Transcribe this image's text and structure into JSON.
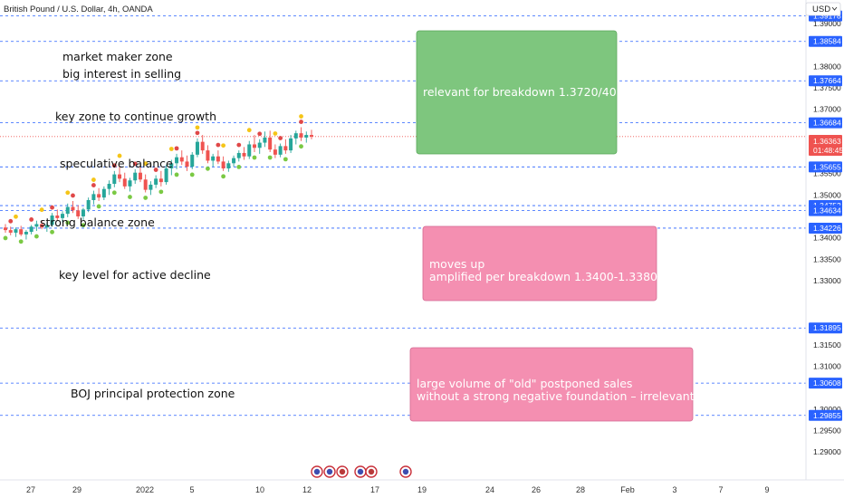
{
  "header": {
    "symbol_title": "British Pound / U.S. Dollar, 4h, OANDA",
    "currency": "USD"
  },
  "chart_data": {
    "type": "candlestick",
    "ylim": [
      1.2835,
      1.3955
    ],
    "y_ticks": [
      1.39,
      1.38,
      1.375,
      1.37,
      1.36,
      1.355,
      1.35,
      1.34,
      1.335,
      1.33,
      1.315,
      1.31,
      1.3,
      1.295,
      1.29
    ],
    "level_lines": [
      1.39178,
      1.38584,
      1.37664,
      1.36684,
      1.35655,
      1.34752,
      1.34634,
      1.34226,
      1.31895,
      1.30608,
      1.29855
    ],
    "current_price": 1.36363,
    "countdown": "01:48:45",
    "x_labels": [
      "27",
      "29",
      "2022",
      "5",
      "10",
      "12",
      "17",
      "19",
      "24",
      "26",
      "28",
      "Feb",
      "3",
      "7",
      "9"
    ],
    "candles": [
      [
        1.3424,
        1.3432,
        1.3412,
        1.3418
      ],
      [
        1.3418,
        1.3426,
        1.3406,
        1.3412
      ],
      [
        1.3412,
        1.3424,
        1.3402,
        1.342
      ],
      [
        1.342,
        1.3428,
        1.3404,
        1.3408
      ],
      [
        1.3408,
        1.3418,
        1.3396,
        1.3414
      ],
      [
        1.3414,
        1.343,
        1.3408,
        1.3426
      ],
      [
        1.3426,
        1.344,
        1.3416,
        1.3432
      ],
      [
        1.3432,
        1.344,
        1.342,
        1.3424
      ],
      [
        1.3424,
        1.3436,
        1.3414,
        1.343
      ],
      [
        1.343,
        1.3458,
        1.3426,
        1.3452
      ],
      [
        1.3452,
        1.3466,
        1.344,
        1.3446
      ],
      [
        1.3446,
        1.3462,
        1.3436,
        1.3456
      ],
      [
        1.3456,
        1.348,
        1.3448,
        1.3472
      ],
      [
        1.3472,
        1.3486,
        1.3458,
        1.3464
      ],
      [
        1.3464,
        1.3476,
        1.3444,
        1.345
      ],
      [
        1.345,
        1.347,
        1.3442,
        1.3466
      ],
      [
        1.3466,
        1.3494,
        1.346,
        1.3488
      ],
      [
        1.3488,
        1.351,
        1.3478,
        1.3502
      ],
      [
        1.3502,
        1.3516,
        1.3486,
        1.3494
      ],
      [
        1.3494,
        1.352,
        1.3488,
        1.3514
      ],
      [
        1.3514,
        1.3534,
        1.35,
        1.3526
      ],
      [
        1.3526,
        1.3556,
        1.3518,
        1.3548
      ],
      [
        1.3548,
        1.3566,
        1.353,
        1.3538
      ],
      [
        1.3538,
        1.3552,
        1.3514,
        1.352
      ],
      [
        1.352,
        1.354,
        1.3508,
        1.3534
      ],
      [
        1.3534,
        1.356,
        1.3526,
        1.3552
      ],
      [
        1.3552,
        1.3566,
        1.353,
        1.3536
      ],
      [
        1.3536,
        1.3548,
        1.3506,
        1.3512
      ],
      [
        1.3512,
        1.3532,
        1.35,
        1.3524
      ],
      [
        1.3524,
        1.3546,
        1.3516,
        1.3538
      ],
      [
        1.3538,
        1.3556,
        1.352,
        1.353
      ],
      [
        1.353,
        1.357,
        1.3524,
        1.3562
      ],
      [
        1.3562,
        1.3582,
        1.3546,
        1.3574
      ],
      [
        1.3574,
        1.3596,
        1.356,
        1.3588
      ],
      [
        1.3588,
        1.3604,
        1.357,
        1.3578
      ],
      [
        1.3578,
        1.3592,
        1.3556,
        1.3566
      ],
      [
        1.3566,
        1.36,
        1.356,
        1.3594
      ],
      [
        1.3594,
        1.3632,
        1.3588,
        1.3624
      ],
      [
        1.3624,
        1.364,
        1.3596,
        1.3604
      ],
      [
        1.3604,
        1.3616,
        1.3574,
        1.358
      ],
      [
        1.358,
        1.3596,
        1.3566,
        1.359
      ],
      [
        1.359,
        1.3604,
        1.3572,
        1.3578
      ],
      [
        1.3578,
        1.359,
        1.3556,
        1.3562
      ],
      [
        1.3562,
        1.358,
        1.3554,
        1.3574
      ],
      [
        1.3574,
        1.3592,
        1.3566,
        1.3586
      ],
      [
        1.3586,
        1.3604,
        1.3578,
        1.3598
      ],
      [
        1.3598,
        1.3612,
        1.3582,
        1.359
      ],
      [
        1.359,
        1.3626,
        1.3584,
        1.3618
      ],
      [
        1.3618,
        1.364,
        1.36,
        1.361
      ],
      [
        1.361,
        1.363,
        1.3596,
        1.3622
      ],
      [
        1.3622,
        1.3648,
        1.3612,
        1.3634
      ],
      [
        1.3634,
        1.365,
        1.36,
        1.3606
      ],
      [
        1.3606,
        1.3618,
        1.3586,
        1.3594
      ],
      [
        1.3594,
        1.362,
        1.3588,
        1.3614
      ],
      [
        1.3614,
        1.363,
        1.3596,
        1.3604
      ],
      [
        1.3604,
        1.364,
        1.3598,
        1.3632
      ],
      [
        1.3632,
        1.365,
        1.3618,
        1.3644
      ],
      [
        1.3644,
        1.3658,
        1.3626,
        1.3634
      ],
      [
        1.3634,
        1.3648,
        1.3622,
        1.364
      ],
      [
        1.364,
        1.3652,
        1.363,
        1.3636
      ]
    ]
  },
  "annotations": [
    {
      "text": "market maker zone"
    },
    {
      "text": "big interest in selling"
    },
    {
      "text": "key zone to continue growth"
    },
    {
      "text": "speculative balance"
    },
    {
      "text": "strong balance zone"
    },
    {
      "text": "key level for active decline"
    },
    {
      "text": "BOJ principal protection zone"
    }
  ],
  "boxes": [
    {
      "color": "#7ec67e",
      "lines": [
        "relevant for breakdown 1.3720/40"
      ]
    },
    {
      "color": "#f48fb1",
      "lines": [
        "moves up",
        "amplified per breakdown 1.3400-1.3380"
      ]
    },
    {
      "color": "#f48fb1",
      "lines": [
        "large volume of \"old\" postponed  sales",
        "without a strong negative foundation – irrelevant"
      ]
    }
  ],
  "colors": {
    "up_candle": "#26a69a",
    "down_candle": "#ef5350",
    "level_line": "#2962ff",
    "price_label_bg": "#2962ff",
    "current_price_bg": "#ef5350",
    "dot_red": "#e04848",
    "dot_yellow": "#f5c518",
    "dot_green": "#7ac943"
  }
}
